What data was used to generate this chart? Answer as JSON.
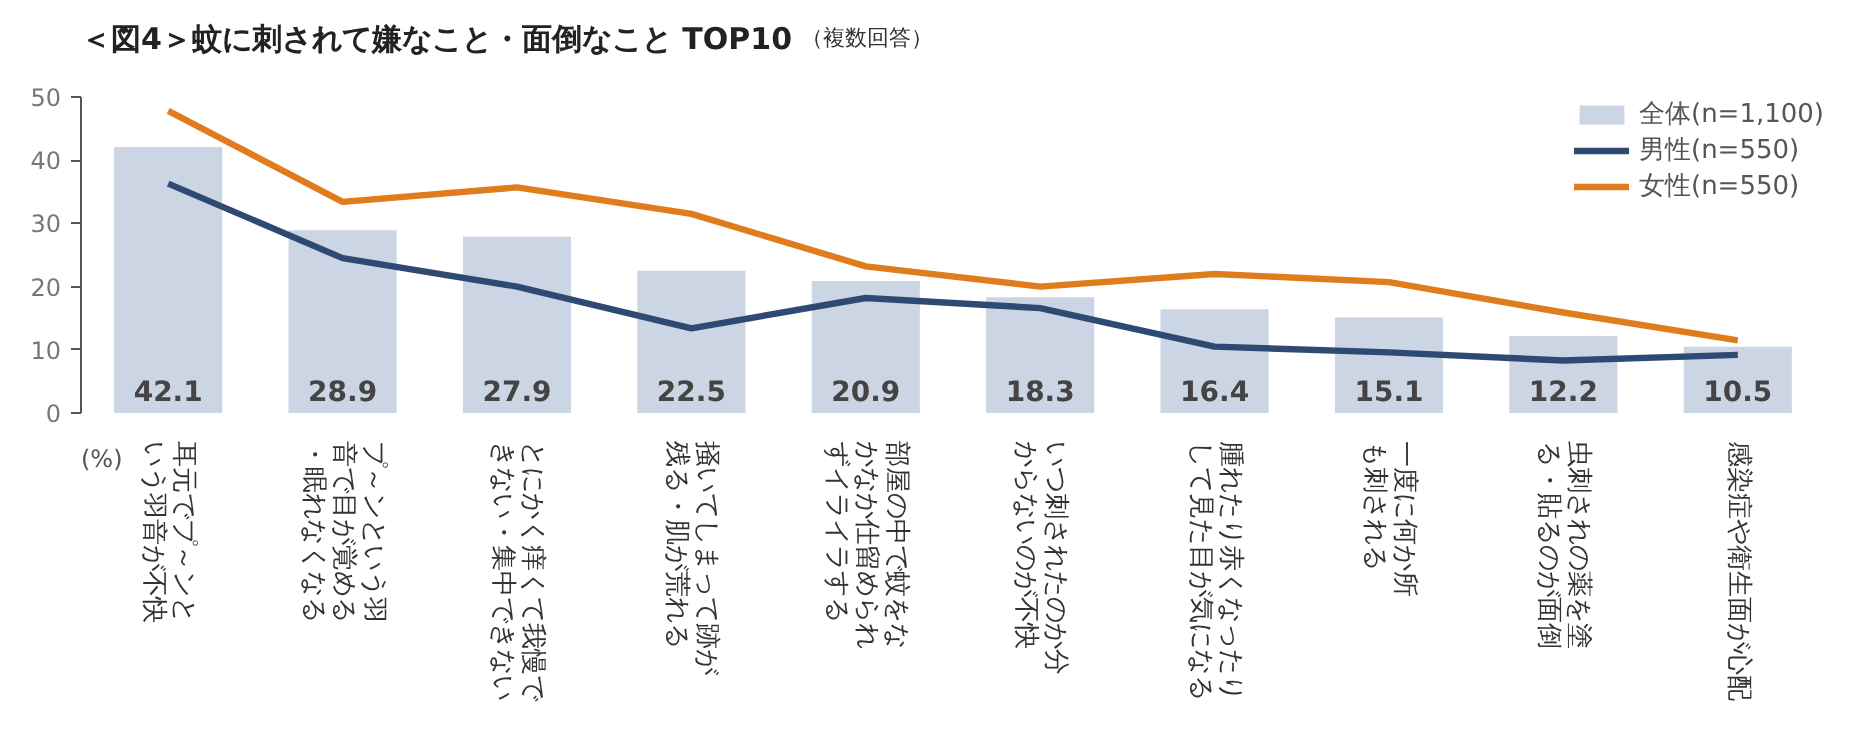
{
  "chart_data": {
    "type": "bar",
    "title": "＜図4＞蚊に刺されて嫌なこと・面倒なこと TOP10",
    "subtitle": "（複数回答）",
    "categories": [
      "耳元でプ～ンという羽音が不快",
      "プ～ンという羽音で目が覚める・眠れなくなる",
      "とにかく痒くて我慢できない・集中できない",
      "掻いてしまって跡が残る・肌が荒れる",
      "部屋の中で蚊をなかなか仕留められずイライラする",
      "いつ刺されたのか分からないのが不快",
      "腫れたり赤くなったりして見た目が気になる",
      "一度に何か所も刺される",
      "虫刺されの薬を塗る・貼るのが面倒",
      "感染症や衛生面が心配"
    ],
    "series": [
      {
        "name": "全体(n=1,100)",
        "color": "#ccd5e3",
        "values": [
          42.1,
          28.9,
          27.9,
          22.5,
          20.9,
          18.3,
          16.4,
          15.1,
          12.2,
          10.5
        ],
        "value_labels": [
          "42.1",
          "28.9",
          "27.9",
          "22.5",
          "20.9",
          "18.3",
          "16.4",
          "15.1",
          "12.2",
          "10.5"
        ]
      },
      {
        "name": "男性(n=550)",
        "type": "line",
        "color": "#2e4a72",
        "values": [
          36.3,
          24.5,
          20.0,
          13.4,
          18.2,
          16.6,
          10.5,
          9.6,
          8.3,
          9.2
        ]
      },
      {
        "name": "女性(n=550)",
        "type": "line",
        "color": "#e07c1b",
        "values": [
          47.8,
          33.4,
          35.7,
          31.5,
          23.2,
          20.0,
          22.0,
          20.7,
          15.9,
          11.5
        ]
      }
    ],
    "ylim": [
      0,
      50
    ],
    "yticks": [
      0,
      10,
      20,
      30,
      40,
      50
    ],
    "grid": false,
    "legend": "top right",
    "marker": "none",
    "line_style": "solid",
    "annotations": [
      "(%)"
    ]
  }
}
